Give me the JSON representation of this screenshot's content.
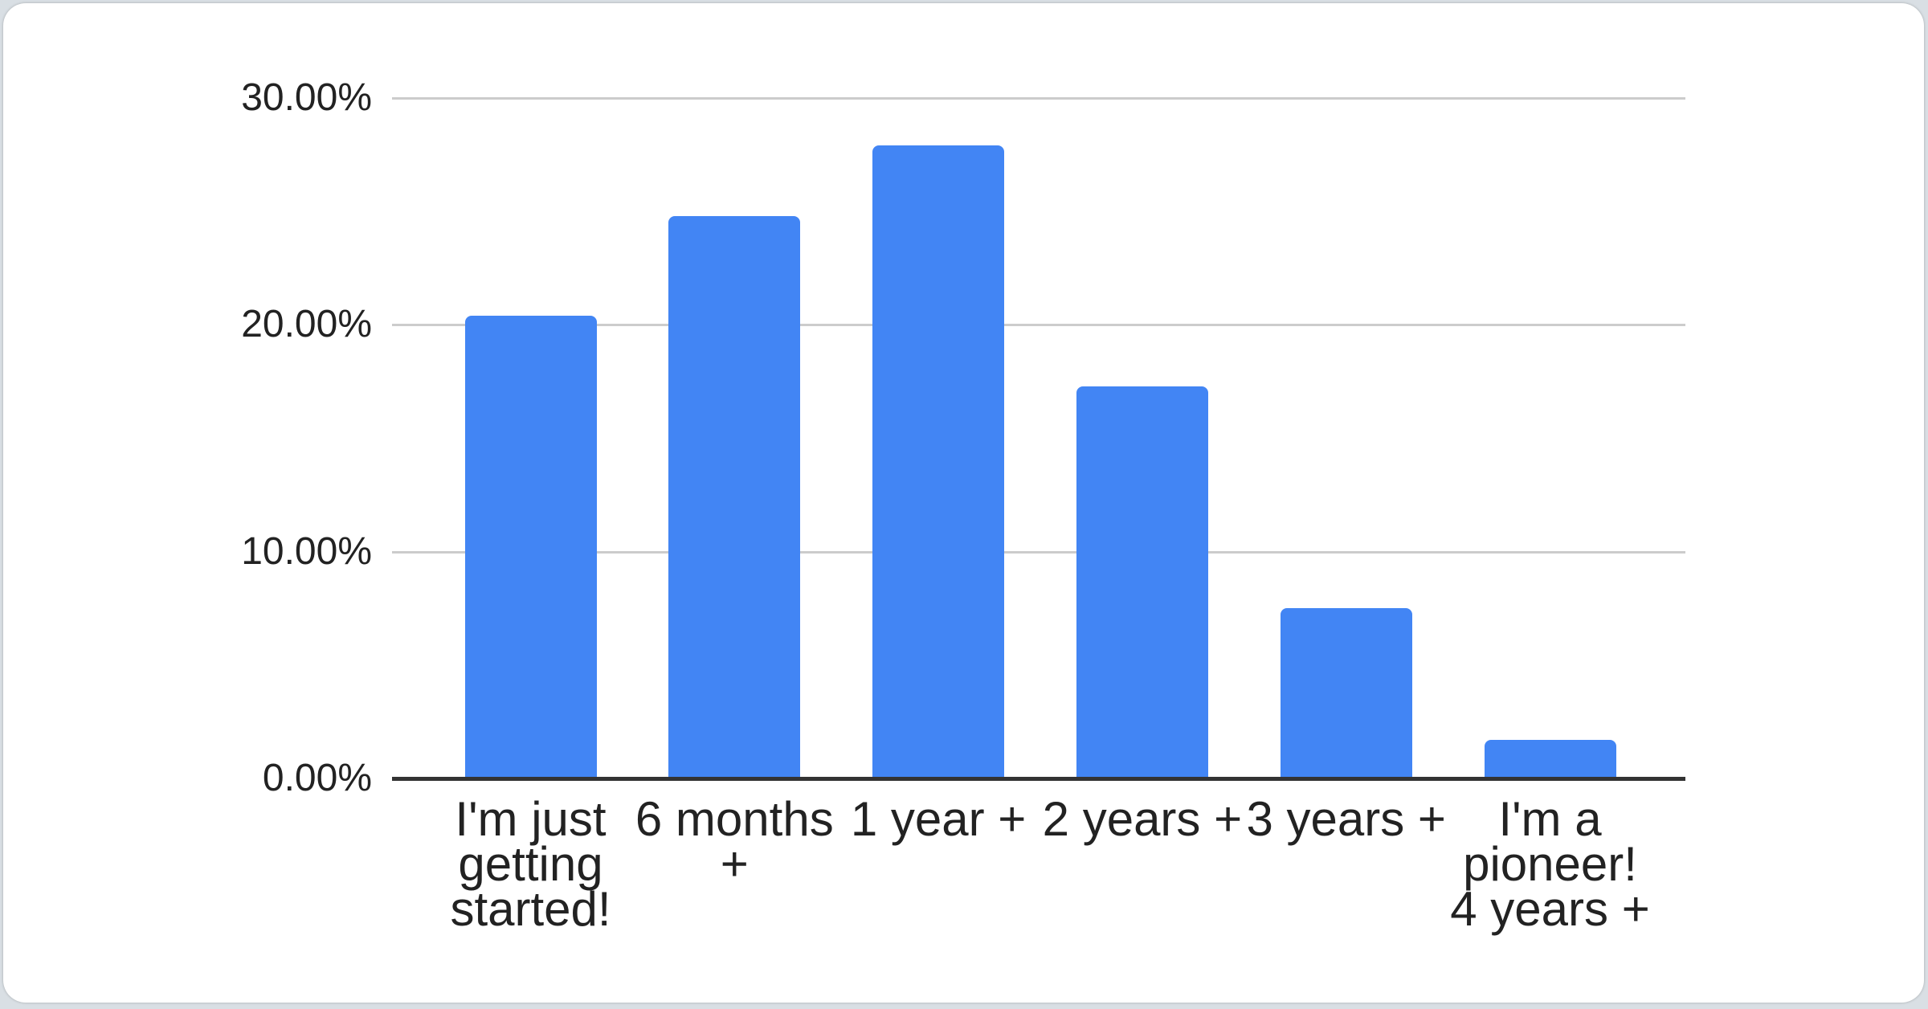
{
  "chart_data": {
    "type": "bar",
    "title": "",
    "categories": [
      "I'm just getting started!",
      "6 months +",
      "1 year +",
      "2 years +",
      "3 years +",
      "I'm a pioneer! 4 years +"
    ],
    "category_lines": [
      [
        "I'm just",
        "getting",
        "started!"
      ],
      [
        "6 months",
        "+"
      ],
      [
        "1 year +"
      ],
      [
        "2 years +"
      ],
      [
        "3 years +"
      ],
      [
        "I'm a",
        "pioneer!",
        "4 years +"
      ]
    ],
    "values": [
      20.4,
      24.8,
      27.9,
      17.3,
      7.5,
      1.7
    ],
    "value_unit": "%",
    "xlabel": "",
    "ylabel": "",
    "ylim": [
      0,
      30
    ],
    "yticks": [
      {
        "label": "30.00%",
        "value": 30
      },
      {
        "label": "20.00%",
        "value": 20
      },
      {
        "label": "10.00%",
        "value": 10
      },
      {
        "label": "0.00%",
        "value": 0
      }
    ],
    "grid": true,
    "legend": "none",
    "colors": {
      "bar": "#4285F4",
      "gridline": "#cccccc",
      "axis_line": "#333333",
      "text": "#222222",
      "card_background": "#ffffff",
      "page_background": "#d9dfe4"
    }
  }
}
